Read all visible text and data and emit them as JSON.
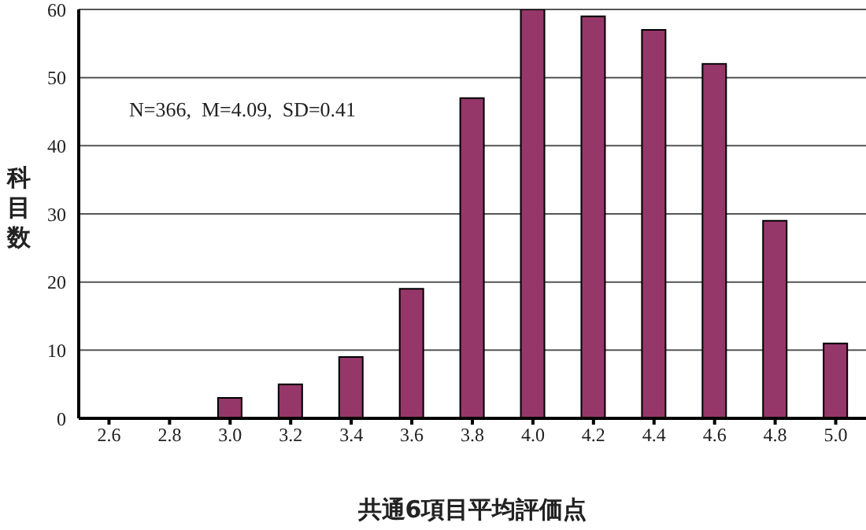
{
  "chart_data": {
    "type": "bar",
    "xlabel": "共通6項目平均評価点",
    "ylabel": "科目数",
    "categories": [
      "2.6",
      "2.8",
      "3.0",
      "3.2",
      "3.4",
      "3.6",
      "3.8",
      "4.0",
      "4.2",
      "4.4",
      "4.6",
      "4.8",
      "5.0"
    ],
    "values": [
      0,
      0,
      3,
      5,
      9,
      19,
      47,
      60,
      59,
      57,
      52,
      29,
      11
    ],
    "color": "#953769",
    "ylim": [
      0,
      60
    ],
    "yticks": [
      0,
      10,
      20,
      30,
      40,
      50,
      60
    ],
    "grid": "y",
    "annotations": [
      "N=366,  M=4.09,  SD=0.41"
    ]
  }
}
